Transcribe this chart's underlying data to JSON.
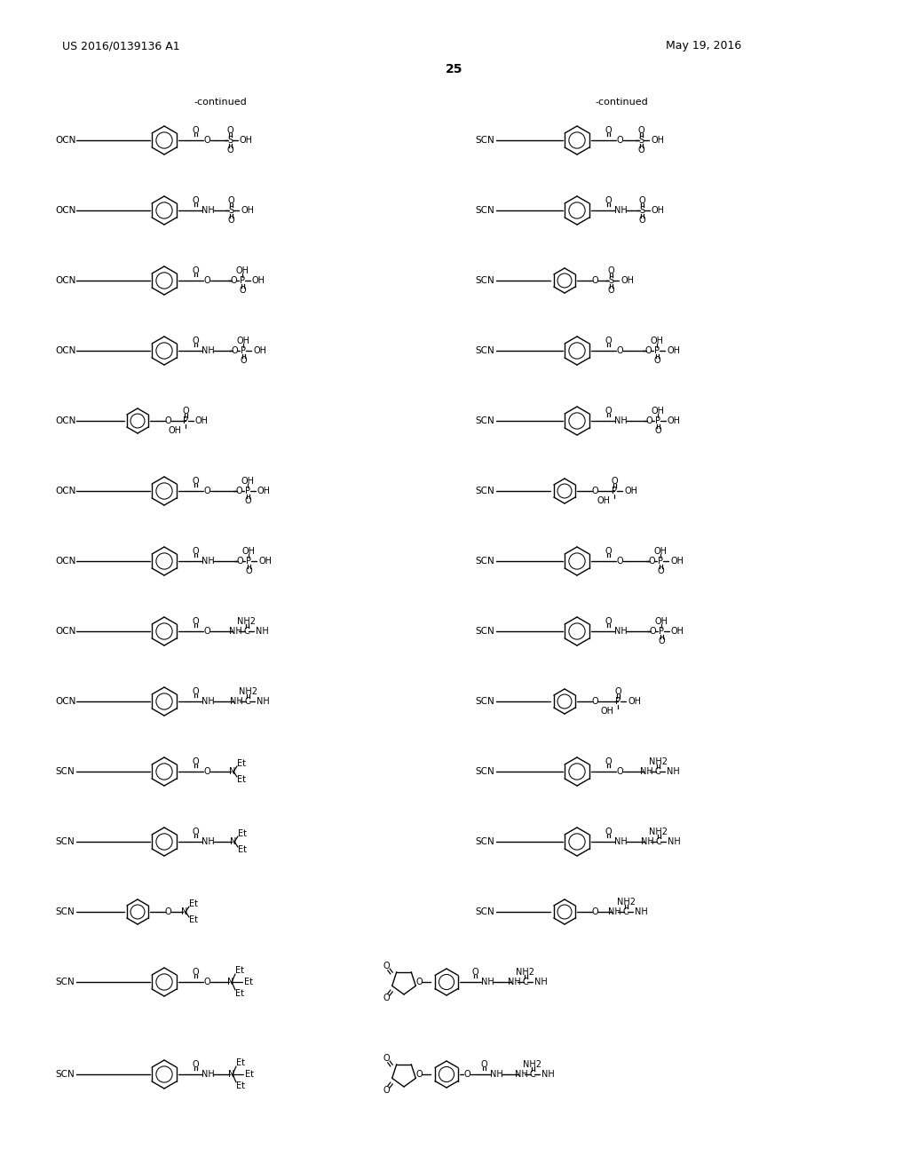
{
  "page_header_left": "US 2016/0139136 A1",
  "page_header_right": "May 19, 2016",
  "page_number": "25",
  "bg": "#ffffff",
  "fig_width": 10.24,
  "fig_height": 13.2,
  "dpi": 100
}
